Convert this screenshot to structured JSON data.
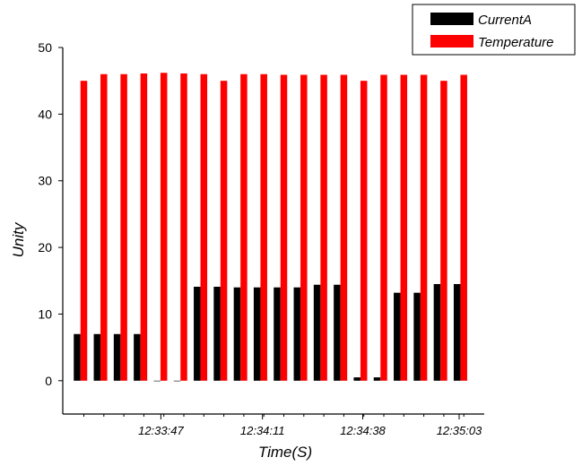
{
  "chart_data": {
    "type": "bar",
    "xlabel": "Time(S)",
    "ylabel": "Unity",
    "ylim": [
      -5,
      50
    ],
    "yticks": [
      0,
      10,
      20,
      30,
      40,
      50
    ],
    "x_tick_labels": [
      "12:33:47",
      "12:34:11",
      "12:34:38",
      "12:35:03"
    ],
    "grid": false,
    "legend_position": "top-right",
    "series": [
      {
        "name": "CurrentA",
        "color": "#000000",
        "values": [
          7,
          7,
          7,
          7,
          0,
          0,
          14.1,
          14.1,
          14,
          14,
          14,
          14,
          14.4,
          14.4,
          0.5,
          0.5,
          13.2,
          13.2,
          14.5,
          14.5
        ]
      },
      {
        "name": "Temperature",
        "color": "#ff0000",
        "values": [
          45,
          46,
          46,
          46.1,
          46.2,
          46.1,
          46,
          45,
          46,
          46,
          45.9,
          45.9,
          45.9,
          45.9,
          45,
          45.9,
          45.9,
          45.9,
          45,
          45.9
        ]
      }
    ]
  }
}
